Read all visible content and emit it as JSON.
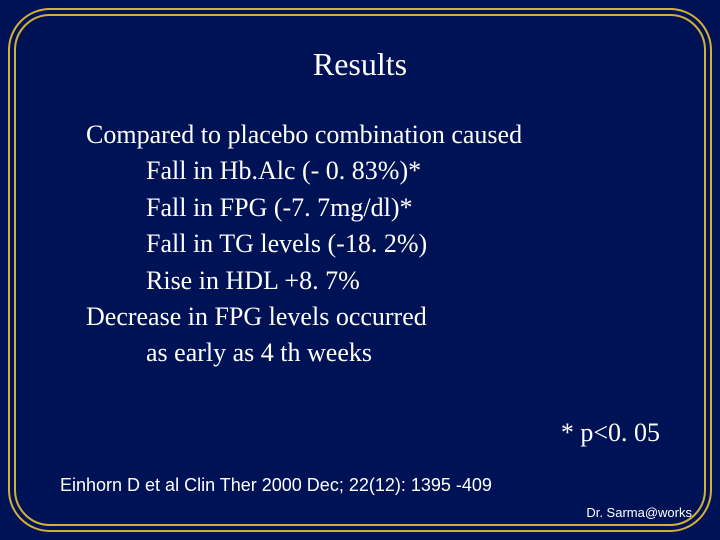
{
  "slide": {
    "title": "Results",
    "lead": "Compared to placebo combination caused",
    "bullets": [
      "Fall in Hb.Alc (- 0. 83%)*",
      "Fall in FPG (-7. 7mg/dl)*",
      "Fall in TG levels (-18. 2%)",
      "Rise in HDL +8. 7%"
    ],
    "secondary_lead": "Decrease in FPG levels occurred",
    "secondary_sub": "as early as 4 th weeks",
    "pvalue": "* p<0. 05",
    "citation": "Einhorn D et al Clin Ther 2000 Dec; 22(12): 1395 -409",
    "attribution": "Dr. Sarma@works"
  },
  "style": {
    "background_color": "#001256",
    "border_color": "#d4af37",
    "text_color": "#ffffff",
    "title_fontsize": 32,
    "body_fontsize": 26,
    "citation_fontsize": 18,
    "attribution_fontsize": 13,
    "font_family_body": "Times New Roman",
    "font_family_footer": "Arial"
  }
}
